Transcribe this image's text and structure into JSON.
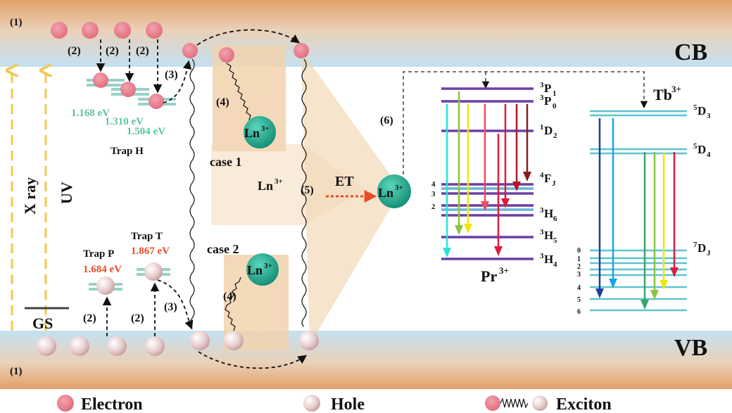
{
  "labels": {
    "cb": "CB",
    "vb": "VB",
    "gs": "GS",
    "xray": "X ray",
    "uv": "UV",
    "step1": "(1)",
    "step2": "(2)",
    "step3": "(3)",
    "step4": "(4)",
    "step5": "(5)",
    "step6": "(6)",
    "et": "ET",
    "case1": "case 1",
    "case2": "case 2",
    "ln": "Ln",
    "ln_sup": "3+"
  },
  "traps": {
    "h_name": "Trap H",
    "h_levels": [
      "1.168 eV",
      "1.310 eV",
      "1.504 eV"
    ],
    "p_name": "Trap P",
    "p_energy": "1.684 eV",
    "t_name": "Trap T",
    "t_energy": "1.867 eV"
  },
  "pr": {
    "ion": "Pr",
    "sup": "3+",
    "levels": [
      {
        "pre": "3",
        "main": "P",
        "sub": "1"
      },
      {
        "pre": "3",
        "main": "P",
        "sub": "0"
      },
      {
        "pre": "1",
        "main": "D",
        "sub": "2"
      },
      {
        "pre": "4",
        "main": "F",
        "sub": "J"
      },
      {
        "pre": "3",
        "main": "H",
        "sub": "6"
      },
      {
        "pre": "3",
        "main": "H",
        "sub": "5"
      },
      {
        "pre": "3",
        "main": "H",
        "sub": "4"
      }
    ],
    "f_sublevels": [
      "4",
      "3",
      "2"
    ]
  },
  "tb": {
    "ion": "Tb",
    "sup": "3+",
    "levels": [
      {
        "pre": "5",
        "main": "D",
        "sub": "3"
      },
      {
        "pre": "5",
        "main": "D",
        "sub": "4"
      },
      {
        "pre": "7",
        "main": "D",
        "sub": "J"
      }
    ],
    "d_sublevels": [
      "0",
      "1",
      "2",
      "3",
      "4",
      "5",
      "6"
    ]
  },
  "legend": {
    "electron": "Electron",
    "hole": "Hole",
    "exciton": "Exciton"
  },
  "colors": {
    "band_orange": "#e2a872",
    "band_blue": "#c9e3f2",
    "electron": "#e98495",
    "hole": "#e6c9c9",
    "ln_ion": "#1e9e86",
    "trap_level": "#9ad0c8",
    "trap_text_green": "#5cc59a",
    "trap_text_red": "#e74c2a",
    "level_line": "#6c3fa3",
    "tb_level": "#5fc3d0",
    "uv_arrow": "#f2c94c",
    "et_arrow": "#e74c2a"
  },
  "pr_arrow_colors": [
    "#2fe0d8",
    "#8ac43f",
    "#f1e800",
    "#e94f62",
    "#dc1c3c",
    "#a0181c"
  ],
  "tb_arrow_colors": [
    "#1b3fa0",
    "#1ba3ea",
    "#3aa56b",
    "#8ac43f",
    "#f1e800",
    "#dc1c3c"
  ]
}
